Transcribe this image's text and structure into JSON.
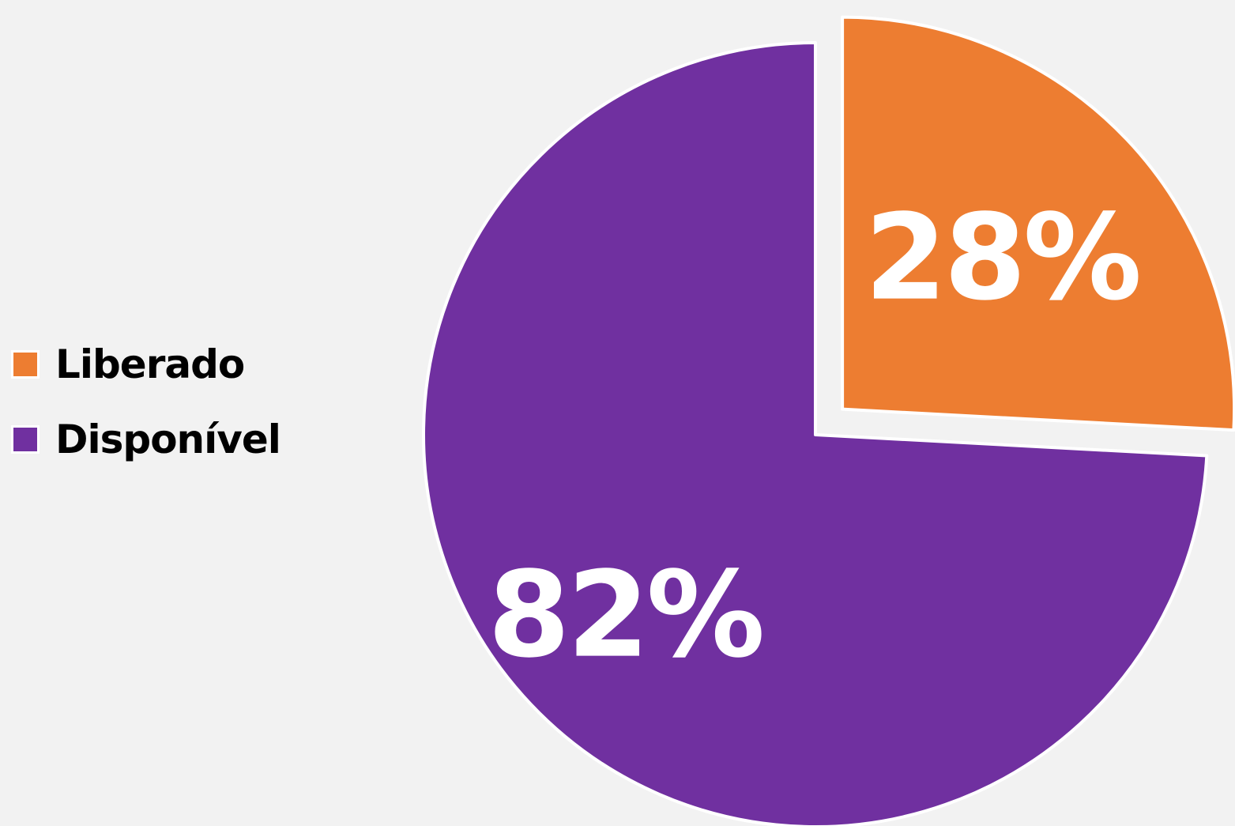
{
  "chart_data": {
    "type": "pie",
    "title": "",
    "legend_position": "left",
    "slices": [
      {
        "label": "Liberado",
        "value": 28,
        "value_label": "28%",
        "color": "#ed7d31",
        "exploded": true
      },
      {
        "label": "Disponível",
        "value": 82,
        "value_label": "82%",
        "color": "#7030a0",
        "exploded": false
      }
    ]
  },
  "colors": {
    "background": "#f2f2f2",
    "slice_border": "#ffffff",
    "data_label": "#ffffff",
    "legend_text": "#000000"
  }
}
